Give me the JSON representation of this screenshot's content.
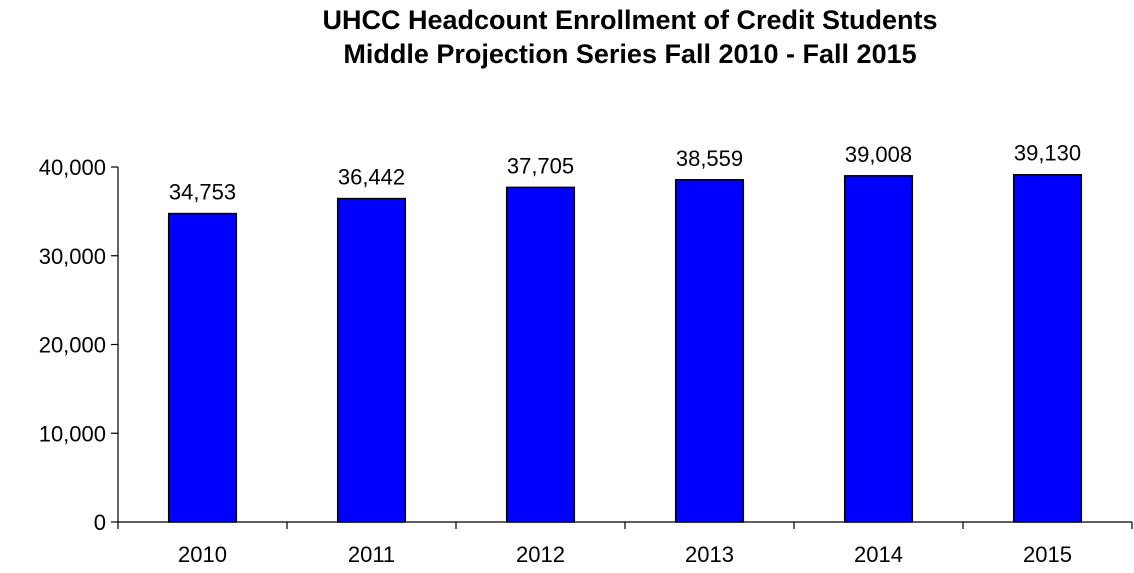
{
  "chart_data": {
    "type": "bar",
    "title": "UHCC Headcount Enrollment of Credit Students",
    "subtitle": "Middle Projection Series Fall 2010 - Fall 2015",
    "categories": [
      "2010",
      "2011",
      "2012",
      "2013",
      "2014",
      "2015"
    ],
    "values": [
      34753,
      36442,
      37705,
      38559,
      39008,
      39130
    ],
    "data_labels": [
      "34,753",
      "36,442",
      "37,705",
      "38,559",
      "39,008",
      "39,130"
    ],
    "y_tick_values": [
      0,
      10000,
      20000,
      30000,
      40000
    ],
    "y_tick_labels": [
      "0",
      "10,000",
      "20,000",
      "30,000",
      "40,000"
    ],
    "ylim": [
      0,
      40000
    ],
    "grid": false,
    "legend": "none",
    "bar_color": "#0000FF",
    "bar_outline_color": "#000000"
  }
}
